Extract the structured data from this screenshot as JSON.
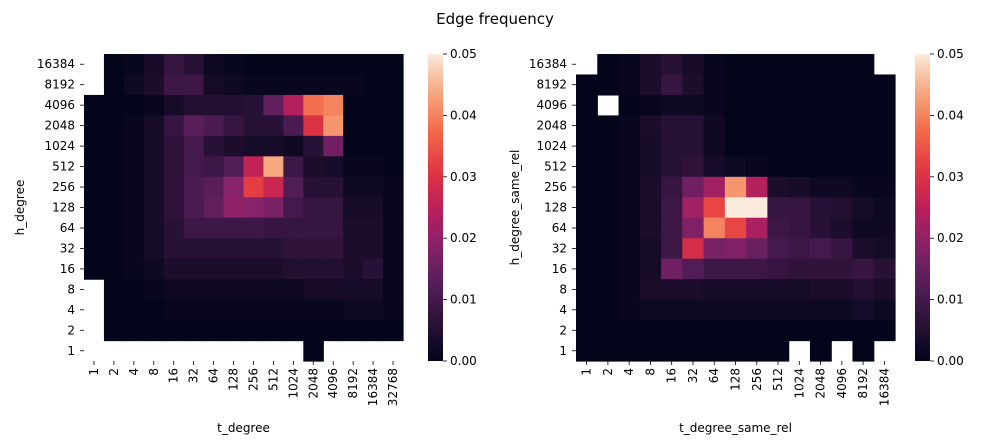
{
  "figure": {
    "title": "Edge frequency"
  },
  "chart_data": [
    {
      "type": "heatmap",
      "xlabel": "t_degree",
      "ylabel": "h_degree",
      "x_categories": [
        "1",
        "2",
        "4",
        "8",
        "16",
        "32",
        "64",
        "128",
        "256",
        "512",
        "1024",
        "2048",
        "4096",
        "8192",
        "16384",
        "32768"
      ],
      "y_categories": [
        "16384",
        "8192",
        "4096",
        "2048",
        "1024",
        "512",
        "256",
        "128",
        "64",
        "32",
        "16",
        "8",
        "4",
        "2",
        "1"
      ],
      "colorbar": {
        "min": 0,
        "max": 0.05,
        "ticks": [
          "0.00",
          "0.01",
          "0.02",
          "0.03",
          "0.04",
          "0.05"
        ],
        "colormap": "rocket"
      },
      "values": [
        [
          null,
          0.0,
          0.001,
          0.003,
          0.008,
          0.006,
          0.002,
          0.001,
          0.0,
          0.0,
          0.0,
          0.0,
          0.0,
          0.0,
          0.0,
          0.0
        ],
        [
          null,
          0.0,
          0.002,
          0.004,
          0.009,
          0.009,
          0.003,
          0.002,
          0.001,
          0.001,
          0.001,
          0.001,
          0.001,
          0.001,
          0.0,
          0.0
        ],
        [
          0.0,
          0.0,
          0.0,
          0.001,
          0.003,
          0.005,
          0.005,
          0.005,
          0.006,
          0.014,
          0.024,
          0.038,
          0.04,
          0.0,
          0.0,
          0.0
        ],
        [
          0.0,
          0.0,
          0.001,
          0.003,
          0.008,
          0.013,
          0.011,
          0.008,
          0.006,
          0.006,
          0.011,
          0.03,
          0.042,
          0.0,
          0.0,
          0.0
        ],
        [
          0.0,
          0.0,
          0.001,
          0.003,
          0.007,
          0.01,
          0.006,
          0.004,
          0.003,
          0.003,
          0.002,
          0.006,
          0.016,
          0.0,
          0.0,
          0.0
        ],
        [
          0.0,
          0.0,
          0.001,
          0.003,
          0.007,
          0.01,
          0.009,
          0.012,
          0.026,
          0.044,
          0.009,
          0.004,
          0.003,
          0.001,
          0.001,
          0.0
        ],
        [
          0.0,
          0.0,
          0.001,
          0.003,
          0.007,
          0.011,
          0.013,
          0.019,
          0.032,
          0.027,
          0.012,
          0.006,
          0.006,
          0.002,
          0.002,
          0.001
        ],
        [
          0.0,
          0.0,
          0.001,
          0.003,
          0.007,
          0.011,
          0.014,
          0.02,
          0.019,
          0.017,
          0.01,
          0.008,
          0.008,
          0.003,
          0.003,
          0.001
        ],
        [
          0.0,
          0.0,
          0.001,
          0.003,
          0.006,
          0.009,
          0.009,
          0.009,
          0.009,
          0.008,
          0.008,
          0.008,
          0.008,
          0.004,
          0.004,
          0.001
        ],
        [
          0.0,
          0.0,
          0.001,
          0.003,
          0.006,
          0.006,
          0.006,
          0.006,
          0.006,
          0.006,
          0.007,
          0.007,
          0.007,
          0.004,
          0.004,
          0.001
        ],
        [
          0.0,
          0.0,
          0.001,
          0.002,
          0.004,
          0.004,
          0.004,
          0.004,
          0.004,
          0.004,
          0.005,
          0.005,
          0.005,
          0.004,
          0.006,
          0.001
        ],
        [
          null,
          0.0,
          0.0,
          0.001,
          0.002,
          0.002,
          0.002,
          0.002,
          0.002,
          0.002,
          0.002,
          0.003,
          0.003,
          0.003,
          0.003,
          0.001
        ],
        [
          null,
          0.0,
          0.0,
          0.0,
          0.001,
          0.001,
          0.001,
          0.001,
          0.001,
          0.001,
          0.001,
          0.001,
          0.001,
          0.002,
          0.002,
          0.001
        ],
        [
          null,
          0.0,
          0.0,
          0.0,
          0.0,
          0.0,
          0.0,
          0.0,
          0.0,
          0.0,
          0.0,
          0.0,
          0.0,
          0.0,
          0.0,
          0.0
        ],
        [
          null,
          null,
          null,
          null,
          null,
          null,
          null,
          null,
          null,
          null,
          null,
          0.0,
          null,
          null,
          null,
          null
        ]
      ]
    },
    {
      "type": "heatmap",
      "xlabel": "t_degree_same_rel",
      "ylabel": "h_degree_same_rel",
      "x_categories": [
        "1",
        "2",
        "4",
        "8",
        "16",
        "32",
        "64",
        "128",
        "256",
        "512",
        "1024",
        "2048",
        "4096",
        "8192",
        "16384"
      ],
      "y_categories": [
        "16384",
        "8192",
        "4096",
        "2048",
        "1024",
        "512",
        "256",
        "128",
        "64",
        "32",
        "16",
        "8",
        "4",
        "2",
        "1"
      ],
      "colorbar": {
        "min": 0,
        "max": 0.05,
        "ticks": [
          "0.00",
          "0.01",
          "0.02",
          "0.03",
          "0.04",
          "0.05"
        ],
        "colormap": "rocket"
      },
      "values": [
        [
          null,
          0.0,
          0.001,
          0.004,
          0.006,
          0.003,
          0.001,
          0.0,
          0.0,
          0.0,
          0.0,
          0.0,
          0.0,
          0.0,
          null
        ],
        [
          0.0,
          0.0,
          0.001,
          0.004,
          0.008,
          0.004,
          0.001,
          0.0,
          0.0,
          0.0,
          0.0,
          0.0,
          0.0,
          0.0,
          0.0
        ],
        [
          0.0,
          null,
          0.0,
          0.001,
          0.002,
          0.002,
          0.001,
          0.0,
          0.0,
          0.0,
          0.0,
          0.0,
          0.0,
          0.0,
          0.0
        ],
        [
          0.0,
          0.0,
          0.001,
          0.004,
          0.006,
          0.006,
          0.002,
          0.0,
          0.0,
          0.0,
          0.0,
          0.0,
          0.0,
          0.0,
          0.0
        ],
        [
          0.0,
          0.0,
          0.001,
          0.003,
          0.006,
          0.006,
          0.002,
          0.0,
          0.0,
          0.0,
          0.0,
          0.0,
          0.0,
          0.0,
          0.0
        ],
        [
          0.0,
          0.0,
          0.001,
          0.003,
          0.006,
          0.007,
          0.003,
          0.002,
          0.001,
          0.0,
          0.0,
          0.0,
          0.0,
          0.0,
          0.0
        ],
        [
          0.0,
          0.0,
          0.001,
          0.004,
          0.008,
          0.016,
          0.022,
          0.042,
          0.024,
          0.004,
          0.003,
          0.002,
          0.002,
          0.001,
          0.001
        ],
        [
          0.0,
          0.0,
          0.001,
          0.004,
          0.009,
          0.022,
          0.033,
          0.05,
          0.05,
          0.008,
          0.008,
          0.006,
          0.005,
          0.003,
          0.002
        ],
        [
          0.0,
          0.0,
          0.001,
          0.004,
          0.009,
          0.018,
          0.04,
          0.033,
          0.023,
          0.009,
          0.008,
          0.006,
          0.004,
          0.002,
          0.002
        ],
        [
          0.0,
          0.0,
          0.001,
          0.003,
          0.009,
          0.029,
          0.017,
          0.018,
          0.015,
          0.01,
          0.009,
          0.01,
          0.008,
          0.004,
          0.003
        ],
        [
          0.0,
          0.0,
          0.001,
          0.003,
          0.016,
          0.012,
          0.009,
          0.009,
          0.009,
          0.008,
          0.007,
          0.007,
          0.007,
          0.008,
          0.006
        ],
        [
          0.0,
          0.0,
          0.001,
          0.004,
          0.004,
          0.004,
          0.003,
          0.003,
          0.003,
          0.003,
          0.003,
          0.004,
          0.004,
          0.005,
          0.004
        ],
        [
          0.0,
          0.0,
          0.001,
          0.002,
          0.002,
          0.002,
          0.002,
          0.002,
          0.002,
          0.002,
          0.002,
          0.002,
          0.002,
          0.003,
          0.002
        ],
        [
          0.0,
          0.0,
          0.0,
          0.0,
          0.0,
          0.0,
          0.0,
          0.0,
          0.0,
          0.0,
          0.0,
          0.0,
          0.0,
          0.0,
          0.0
        ],
        [
          0.0,
          0.0,
          0.0,
          0.0,
          0.0,
          0.0,
          0.0,
          0.0,
          0.0,
          0.0,
          null,
          0.0,
          null,
          0.0,
          null
        ]
      ]
    }
  ]
}
